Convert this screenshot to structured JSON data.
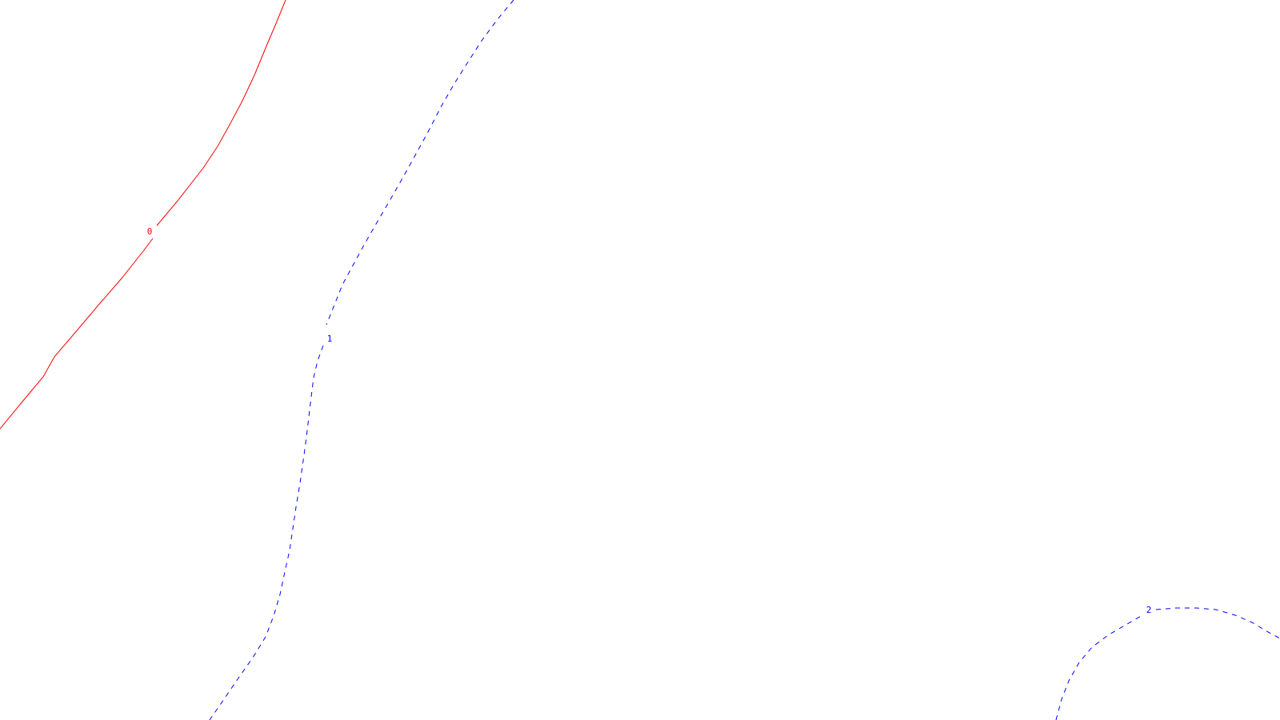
{
  "chart_data": {
    "type": "contour",
    "title": "",
    "xlabel": "",
    "ylabel": "",
    "grid": false,
    "legend": "none",
    "levels": [
      {
        "value": "0",
        "label": "0",
        "color": "#ff0000",
        "style": "solid"
      },
      {
        "value": "1",
        "label": "1",
        "color": "#0000ff",
        "style": "dashed"
      },
      {
        "value": "2",
        "label": "2",
        "color": "#0000ff",
        "style": "dashed"
      }
    ]
  }
}
